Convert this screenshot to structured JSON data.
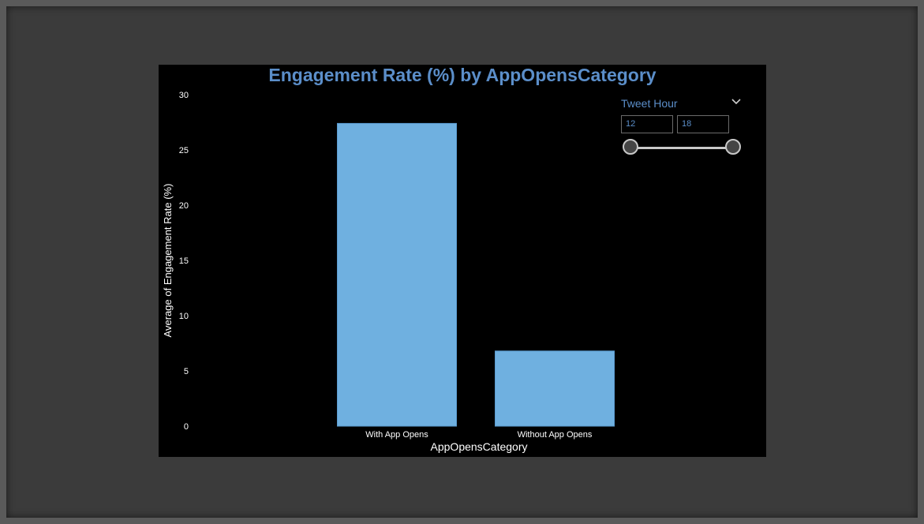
{
  "accent_color": "#5b8ec9",
  "bar_color": "#6fb0e0",
  "chart_data": {
    "type": "bar",
    "title": "Engagement Rate (%) by AppOpensCategory",
    "xlabel": "AppOpensCategory",
    "ylabel": "Average of Engagement Rate (%)",
    "categories": [
      "With App Opens",
      "Without App Opens"
    ],
    "values": [
      27.4,
      6.8
    ],
    "ylim": [
      0,
      30
    ],
    "yticks": [
      0,
      5,
      10,
      15,
      20,
      25,
      30
    ],
    "grid": false
  },
  "slicer": {
    "title": "Tweet Hour",
    "min_value": "12",
    "max_value": "18",
    "chevron_icon": "chevron-down-icon"
  }
}
